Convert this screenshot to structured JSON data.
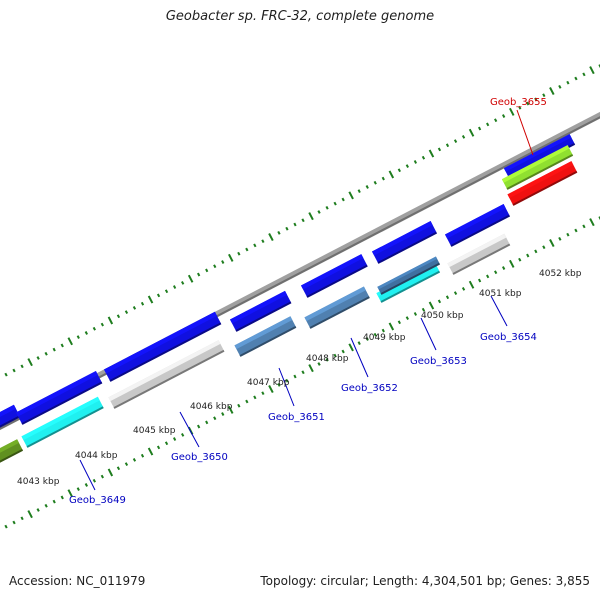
{
  "title": "Geobacter sp. FRC-32, complete genome",
  "footer": {
    "accession_label": "Accession:",
    "accession": "NC_011979",
    "topology_text": "Topology: circular; Length: 4,304,501 bp; Genes: 3,855"
  },
  "colors": {
    "ticks": "#1e7d1e",
    "backbone": "#8a8a8a",
    "label_blue": "#0000c0",
    "label_red": "#d00000",
    "axis_text": "#222222"
  },
  "scale_ticks": [
    {
      "label": "4043 kbp"
    },
    {
      "label": "4044 kbp"
    },
    {
      "label": "4045 kbp"
    },
    {
      "label": "4046 kbp"
    },
    {
      "label": "4047 kbp"
    },
    {
      "label": "4048 kbp"
    },
    {
      "label": "4049 kbp"
    },
    {
      "label": "4050 kbp"
    },
    {
      "label": "4051 kbp"
    },
    {
      "label": "4052 kbp"
    }
  ],
  "gene_labels": [
    {
      "name": "Geob_3649",
      "color": "blue"
    },
    {
      "name": "Geob_3650",
      "color": "blue"
    },
    {
      "name": "Geob_3651",
      "color": "blue"
    },
    {
      "name": "Geob_3652",
      "color": "blue"
    },
    {
      "name": "Geob_3653",
      "color": "blue"
    },
    {
      "name": "Geob_3654",
      "color": "blue"
    },
    {
      "name": "Geob_3655",
      "color": "red"
    }
  ],
  "features": [
    {
      "track": "outer",
      "color": "#1010e0"
    },
    {
      "track": "outer",
      "color": "#1010e0"
    },
    {
      "track": "outer",
      "color": "#1010e0"
    },
    {
      "track": "outer",
      "color": "#1010e0"
    },
    {
      "track": "outer",
      "color": "#1010e0"
    },
    {
      "track": "outer",
      "color": "#1010e0"
    },
    {
      "track": "outer",
      "color": "#1010e0"
    },
    {
      "track": "outer",
      "color": "#1010e0"
    },
    {
      "track": "outer",
      "color": "#90e030"
    },
    {
      "track": "inner",
      "color": "#609020"
    },
    {
      "track": "inner",
      "color": "#20f0f0"
    },
    {
      "track": "inner",
      "color": "#c8c8c8"
    },
    {
      "track": "inner",
      "color": "#5080b0"
    },
    {
      "track": "inner",
      "color": "#5080b0"
    },
    {
      "track": "inner",
      "color": "#20f0f0"
    },
    {
      "track": "inner",
      "color": "#4070a0"
    },
    {
      "track": "inner",
      "color": "#c8c8c8"
    },
    {
      "track": "inner",
      "color": "#f01010"
    }
  ]
}
